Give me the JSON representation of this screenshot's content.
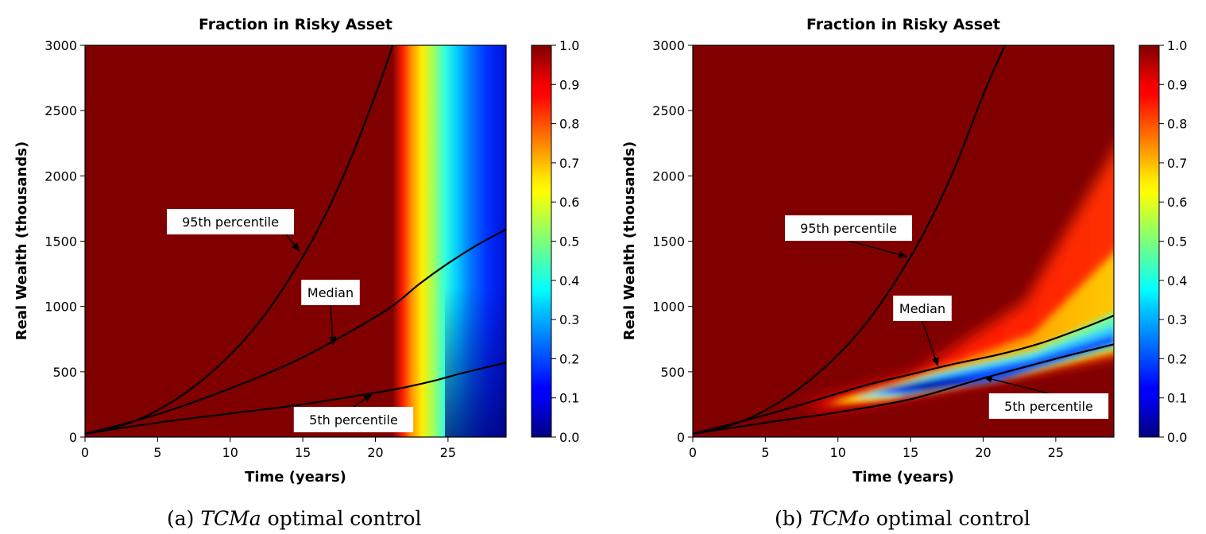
{
  "chart_data": [
    {
      "type": "heatmap",
      "panel": "a",
      "title": "Fraction in Risky Asset",
      "xlabel": "Time (years)",
      "ylabel": "Real Wealth (thousands)",
      "xlim": [
        0,
        29
      ],
      "ylim": [
        0,
        3000
      ],
      "xticks": [
        "0",
        "5",
        "10",
        "15",
        "20",
        "25"
      ],
      "xtick_values": [
        0,
        5,
        10,
        15,
        20,
        25
      ],
      "yticks": [
        "0",
        "500",
        "1000",
        "1500",
        "2000",
        "2500",
        "3000"
      ],
      "ytick_values": [
        0,
        500,
        1000,
        1500,
        2000,
        2500,
        3000
      ],
      "colorbar": {
        "range": [
          0,
          1
        ],
        "ticks": [
          "0.0",
          "0.1",
          "0.2",
          "0.3",
          "0.4",
          "0.5",
          "0.6",
          "0.7",
          "0.8",
          "0.9",
          "1.0"
        ]
      },
      "series": [
        {
          "name": "95th percentile",
          "x": [
            0,
            2,
            4,
            6,
            8,
            10,
            12,
            14,
            16,
            18,
            20,
            21.2
          ],
          "y": [
            25,
            70,
            150,
            270,
            430,
            630,
            880,
            1200,
            1580,
            2050,
            2620,
            3000
          ]
        },
        {
          "name": "Median",
          "x": [
            0,
            3,
            6,
            9,
            12,
            15,
            18,
            21,
            23,
            25,
            27,
            29
          ],
          "y": [
            25,
            110,
            210,
            330,
            460,
            610,
            790,
            990,
            1170,
            1330,
            1470,
            1590
          ]
        },
        {
          "name": "5th percentile",
          "x": [
            0,
            5,
            10,
            15,
            20,
            22,
            24,
            26,
            29
          ],
          "y": [
            25,
            110,
            180,
            250,
            340,
            380,
            430,
            490,
            570
          ]
        }
      ],
      "annotations": [
        {
          "text": "95th percentile",
          "target": [
            14.8,
            1420
          ]
        },
        {
          "text": "Median",
          "target": [
            17.1,
            700
          ]
        },
        {
          "text": "5th percentile",
          "target": [
            19.8,
            330
          ]
        }
      ],
      "caption": {
        "label": "(a)",
        "symbol": "TCMa",
        "text": "optimal control"
      }
    },
    {
      "type": "heatmap",
      "panel": "b",
      "title": "Fraction in Risky Asset",
      "xlabel": "Time (years)",
      "ylabel": "Real Wealth (thousands)",
      "xlim": [
        0,
        29
      ],
      "ylim": [
        0,
        3000
      ],
      "xticks": [
        "0",
        "5",
        "10",
        "15",
        "20",
        "25"
      ],
      "xtick_values": [
        0,
        5,
        10,
        15,
        20,
        25
      ],
      "yticks": [
        "0",
        "500",
        "1000",
        "1500",
        "2000",
        "2500",
        "3000"
      ],
      "ytick_values": [
        0,
        500,
        1000,
        1500,
        2000,
        2500,
        3000
      ],
      "colorbar": {
        "range": [
          0,
          1
        ],
        "ticks": [
          "0.0",
          "0.1",
          "0.2",
          "0.3",
          "0.4",
          "0.5",
          "0.6",
          "0.7",
          "0.8",
          "0.9",
          "1.0"
        ]
      },
      "series": [
        {
          "name": "95th percentile",
          "x": [
            0,
            2,
            4,
            6,
            8,
            10,
            12,
            14,
            16,
            18,
            20,
            21.5
          ],
          "y": [
            25,
            70,
            150,
            270,
            430,
            630,
            880,
            1200,
            1580,
            2050,
            2620,
            3000
          ]
        },
        {
          "name": "Median",
          "x": [
            0,
            3,
            6,
            9,
            12,
            15,
            18,
            21,
            24,
            27,
            29
          ],
          "y": [
            25,
            110,
            200,
            300,
            400,
            480,
            560,
            630,
            720,
            840,
            930
          ]
        },
        {
          "name": "5th percentile",
          "x": [
            0,
            5,
            10,
            15,
            20,
            25,
            29
          ],
          "y": [
            25,
            110,
            190,
            290,
            450,
            600,
            710
          ]
        }
      ],
      "annotations": [
        {
          "text": "95th percentile",
          "target": [
            14.8,
            1380
          ]
        },
        {
          "text": "Median",
          "target": [
            16.9,
            540
          ]
        },
        {
          "text": "5th percentile",
          "target": [
            20.0,
            460
          ]
        }
      ],
      "caption": {
        "label": "(b)",
        "symbol": "TCMo",
        "text": "optimal control"
      }
    }
  ]
}
